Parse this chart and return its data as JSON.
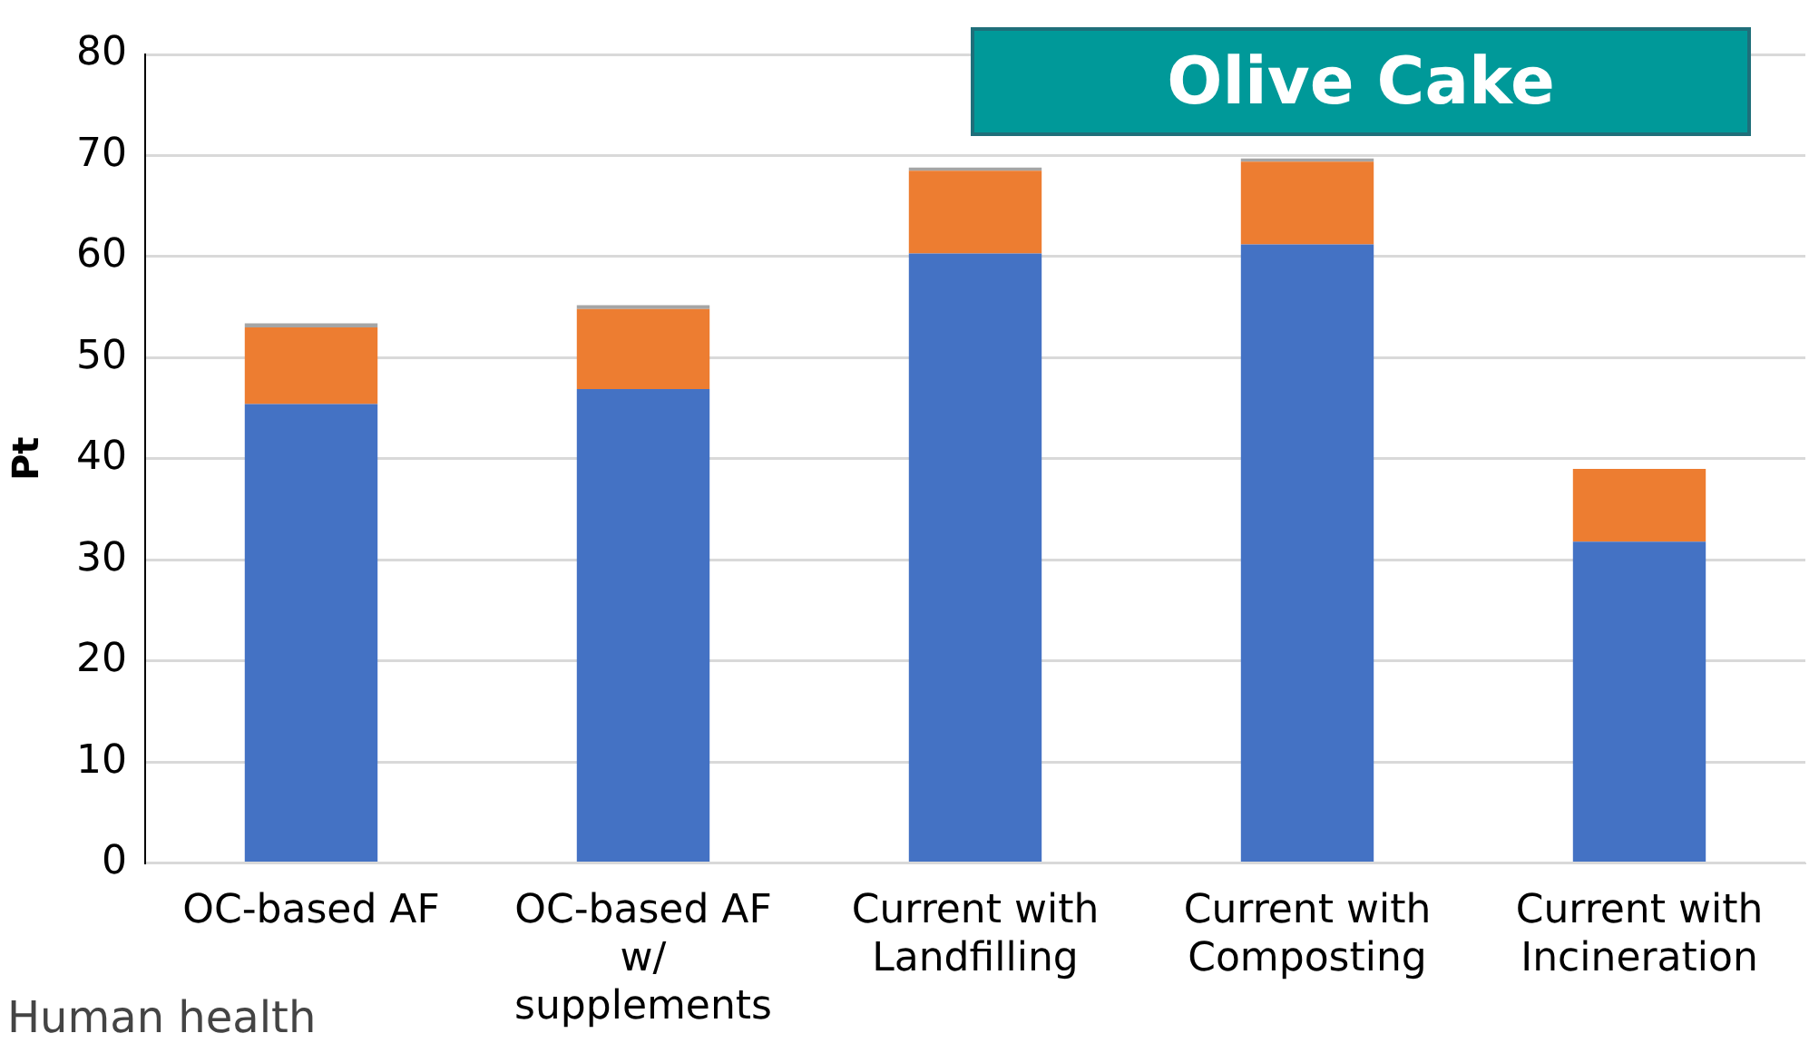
{
  "chart_data": {
    "type": "bar",
    "title": "Olive Cake",
    "ylabel": "Pt",
    "categories": [
      "OC-based AF",
      "OC-based AF w/ supplements",
      "Current with Landfilling",
      "Current with Composting",
      "Current with Incineration"
    ],
    "series": [
      {
        "color": "#4472c4",
        "values": [
          45.4,
          46.9,
          60.3,
          61.2,
          31.8
        ]
      },
      {
        "color": "#ed7d31",
        "values": [
          7.6,
          7.9,
          8.2,
          8.2,
          7.2
        ]
      },
      {
        "color": "#a5a5a5",
        "values": [
          0.4,
          0.4,
          0.3,
          0.3,
          null
        ]
      }
    ],
    "stacked": true,
    "ylim": [
      0,
      80
    ],
    "yticks": [
      0,
      10,
      20,
      30,
      40,
      50,
      60,
      70,
      80
    ],
    "grid": "y",
    "legend": false,
    "annotations": [
      "Human health"
    ]
  }
}
